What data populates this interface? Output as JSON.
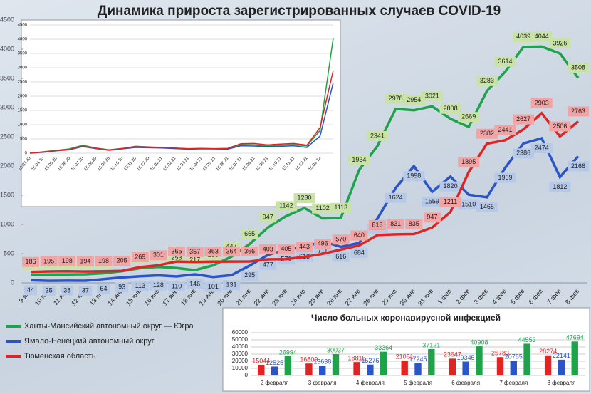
{
  "chart_data": [
    {
      "type": "line",
      "title": "Динамика прироста зарегистрированных случаев COVID-19",
      "categories": [
        "9 янв",
        "10 янв",
        "11 янв",
        "12 янв",
        "13 янв",
        "14 янв",
        "15 янв",
        "16 янв",
        "17 янв",
        "18 янв",
        "19 янв",
        "20 янв",
        "21 янв",
        "22 янв",
        "23 янв",
        "24 янв",
        "25 янв",
        "26 янв",
        "27 янв",
        "28 янв",
        "29 янв",
        "30 янв",
        "31 янв",
        "1 фев",
        "2 фев",
        "3 фев",
        "4 фев",
        "5 фев",
        "6 фев",
        "7 фев",
        "8 фев"
      ],
      "series": [
        {
          "name": "Ханты-Мансийский автономный округ — Югра",
          "color": "#1ea34a",
          "label_color": "#c9e3a6",
          "values": [
            137,
            144,
            143,
            146,
            164,
            199,
            251,
            273,
            253,
            217,
            299,
            447,
            665,
            947,
            1142,
            1280,
            1102,
            1113,
            1934,
            2341,
            2978,
            2954,
            3021,
            2808,
            2669,
            3283,
            3614,
            4039,
            4044,
            3926,
            3508
          ]
        },
        {
          "name": "Ямало-Ненецкий автономный округ",
          "color": "#2a55c8",
          "label_color": "#b7c9e8",
          "values": [
            44,
            35,
            38,
            37,
            64,
            93,
            113,
            128,
            110,
            146,
            101,
            131,
            295,
            477,
            571,
            613,
            711,
            616,
            684,
            1101,
            1624,
            1998,
            1559,
            1820,
            1510,
            1465,
            1969,
            2386,
            2474,
            1812,
            2166
          ]
        },
        {
          "name": "Тюменская область",
          "color": "#e02424",
          "label_color": "#f2a3a3",
          "values": [
            186,
            195,
            198,
            194,
            198,
            205,
            269,
            301,
            365,
            357,
            363,
            364,
            366,
            403,
            405,
            443,
            496,
            570,
            640,
            818,
            831,
            835,
            947,
            1211,
            1895,
            2382,
            2441,
            2627,
            2903,
            2506,
            2763
          ]
        }
      ],
      "ylim": [
        0,
        4500
      ],
      "yticks": [
        0,
        500,
        1000,
        1500,
        2000,
        2500,
        3000,
        3500,
        4000,
        4500
      ],
      "grid": false
    },
    {
      "type": "line",
      "categories": [
        "15.03.20",
        "15.04.20",
        "15.05.20",
        "15.06.20",
        "15.07.20",
        "15.08.20",
        "15.09.20",
        "15.10.20",
        "15.11.20",
        "15.12.20",
        "15.01.21",
        "15.02.21",
        "15.03.21",
        "15.04.21",
        "15.05.21",
        "15.06.21",
        "15.07.21",
        "15.08.21",
        "15.09.21",
        "15.10.21",
        "15.11.21",
        "15.12.21",
        "15.01.22",
        null
      ],
      "series": [
        {
          "color": "#1ea34a",
          "values": [
            0,
            50,
            100,
            150,
            280,
            180,
            120,
            170,
            210,
            200,
            190,
            170,
            150,
            160,
            150,
            150,
            300,
            290,
            260,
            280,
            300,
            250,
            800,
            4039
          ]
        },
        {
          "color": "#2a55c8",
          "values": [
            0,
            30,
            80,
            120,
            230,
            160,
            100,
            150,
            200,
            190,
            180,
            160,
            140,
            150,
            150,
            140,
            260,
            250,
            230,
            240,
            260,
            200,
            600,
            2474
          ]
        },
        {
          "color": "#e02424",
          "values": [
            0,
            40,
            90,
            130,
            250,
            170,
            110,
            160,
            240,
            220,
            200,
            180,
            160,
            170,
            160,
            170,
            330,
            340,
            290,
            320,
            340,
            280,
            900,
            2903
          ]
        }
      ],
      "ylim": [
        0,
        4500
      ],
      "yticks": [
        0,
        500,
        1000,
        1500,
        2000,
        2500,
        3000,
        3500,
        4000,
        4500
      ],
      "grid": true
    },
    {
      "type": "bar",
      "title": "Число больных коронавирусной  инфекцией",
      "categories": [
        "2 февраля",
        "3 февраля",
        "4 февраля",
        "5 февраля",
        "6 февраля",
        "7 февраля",
        "8 февраля"
      ],
      "series": [
        {
          "color": "#e02424",
          "values": [
            15044,
            16809,
            18815,
            21051,
            23647,
            25783,
            28274
          ]
        },
        {
          "color": "#2a55c8",
          "values": [
            12525,
            13638,
            15276,
            17245,
            19345,
            20755,
            22141
          ]
        },
        {
          "color": "#1ea34a",
          "values": [
            26994,
            30037,
            33364,
            37121,
            40908,
            44553,
            47694
          ]
        }
      ],
      "ylim": [
        0,
        60000
      ],
      "yticks": [
        0,
        10000,
        20000,
        30000,
        40000,
        50000,
        60000
      ],
      "grid": true
    }
  ]
}
